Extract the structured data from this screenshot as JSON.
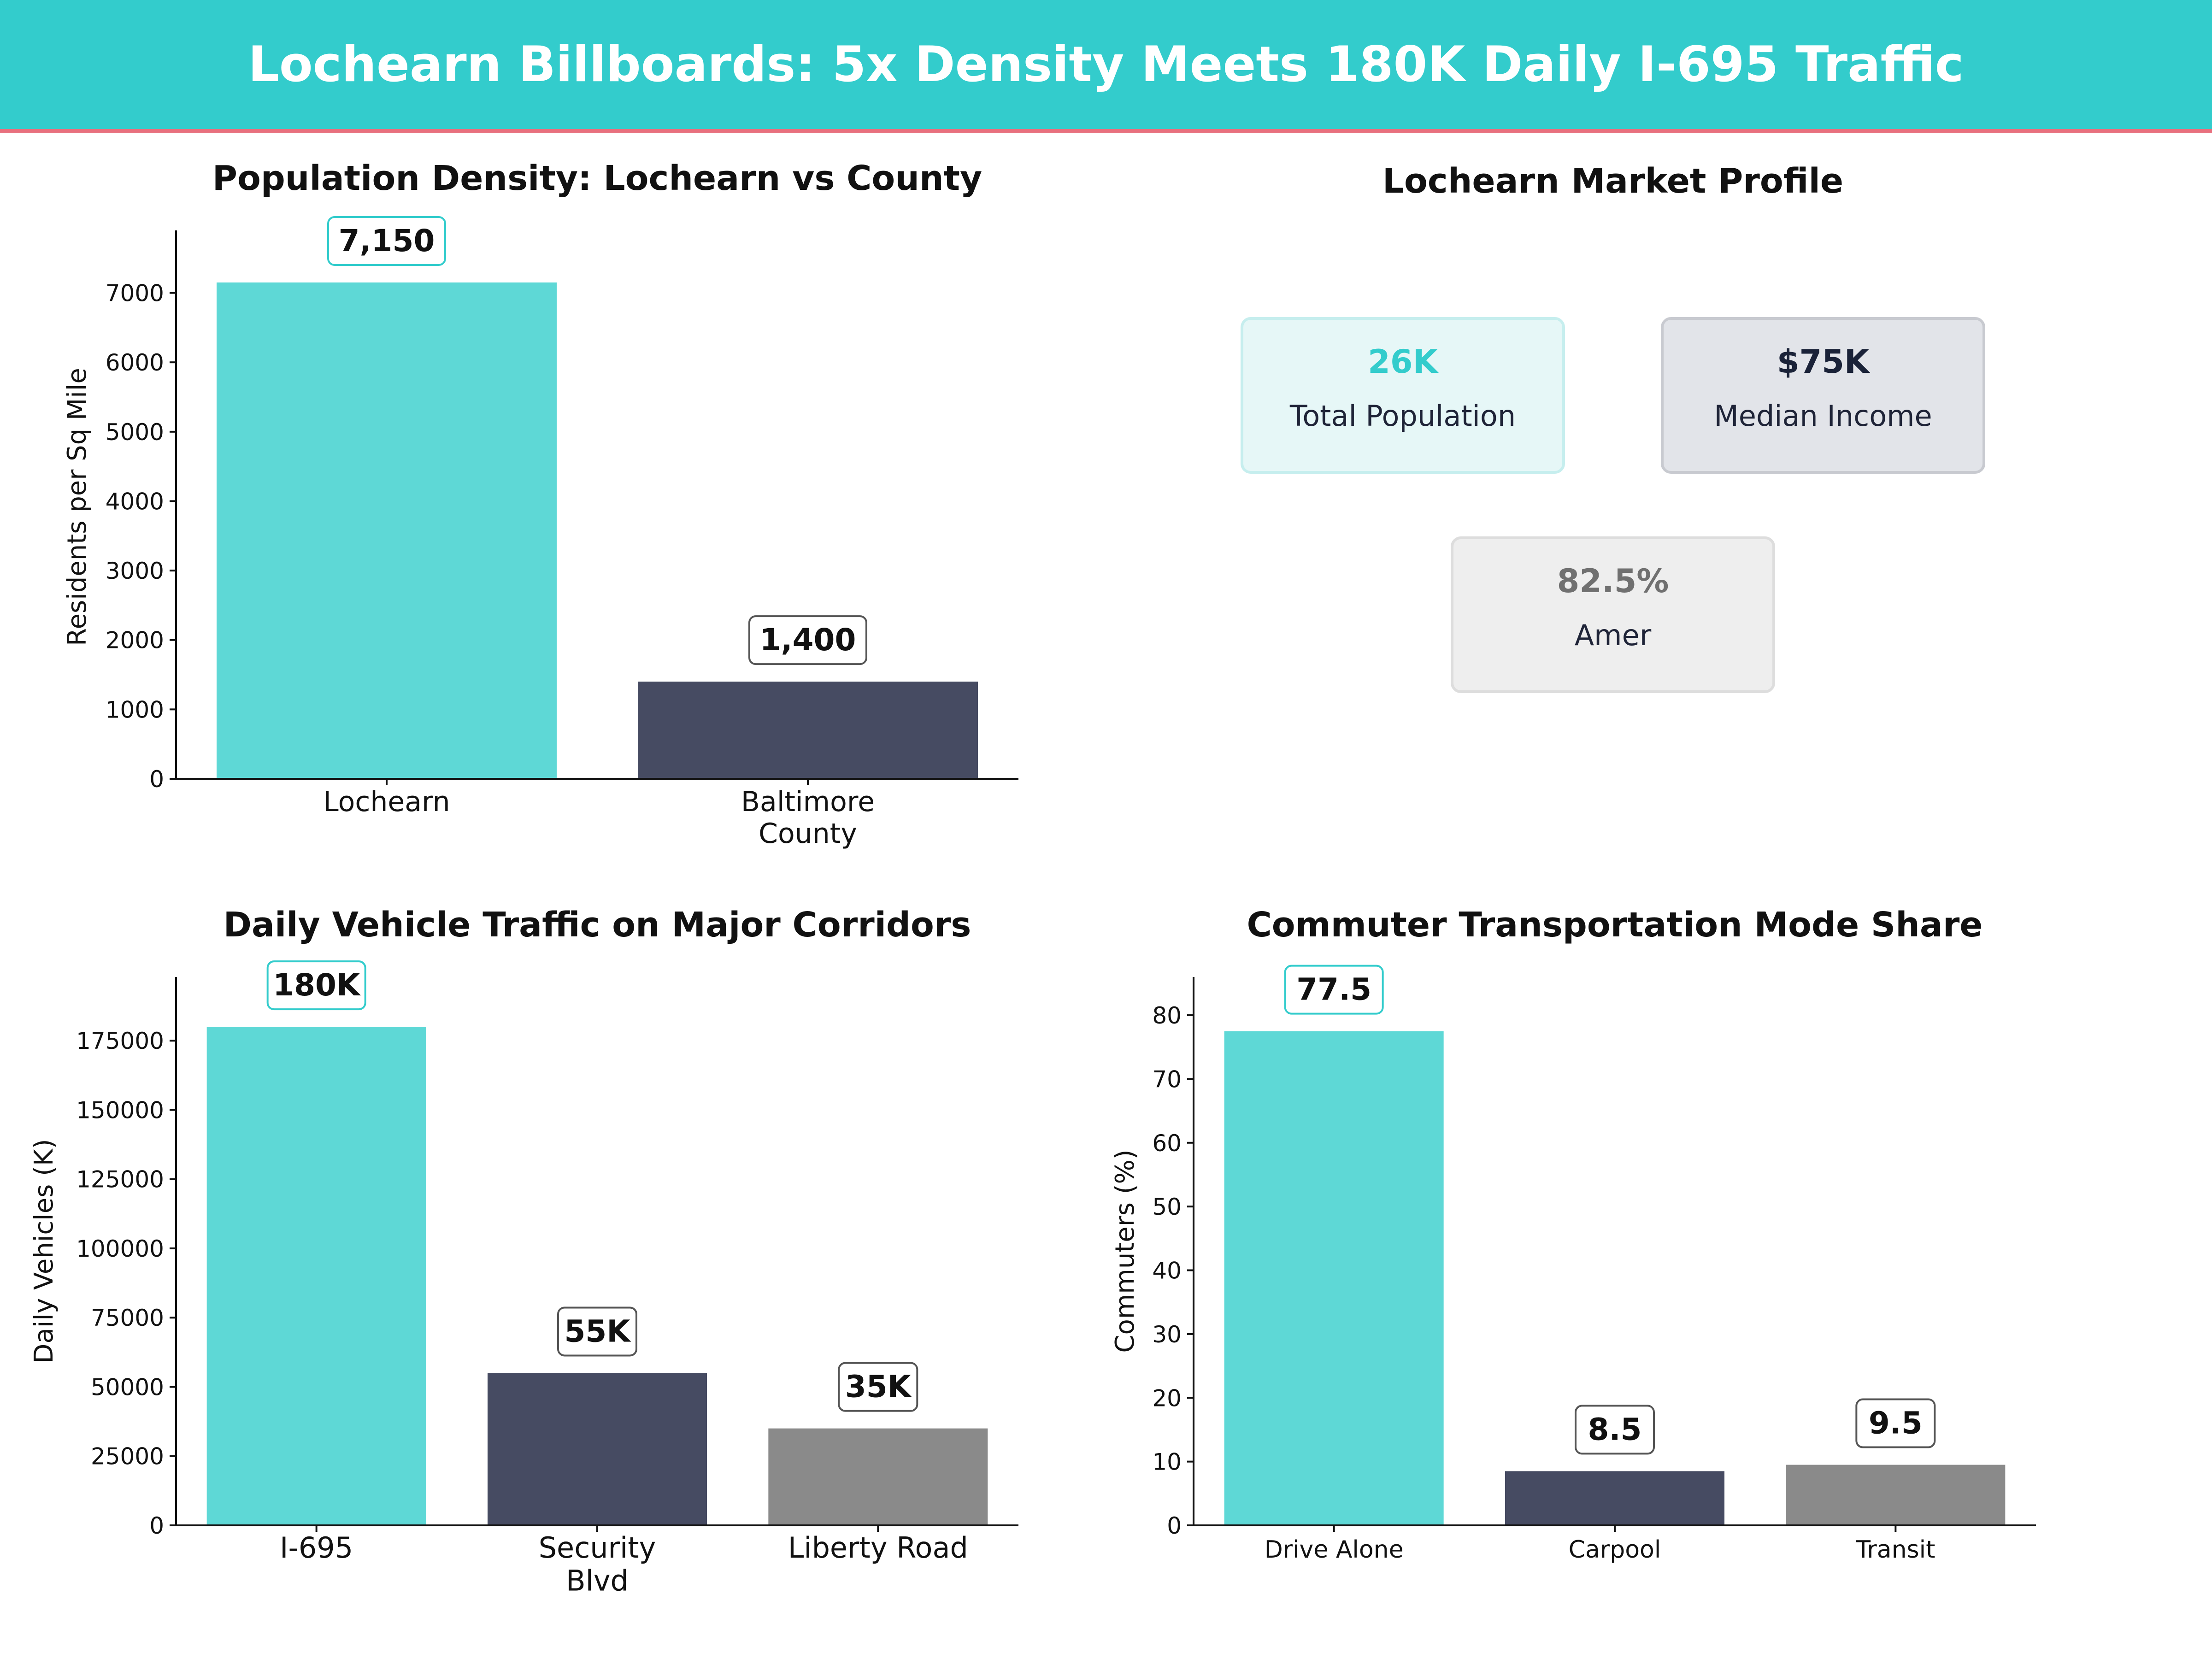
{
  "title": "Lochearn Billboards: 5x Density Meets 180K Daily I-695 Traffic",
  "colors": {
    "header": "#33CCCC",
    "header_rule": "#E8707E",
    "bar_primary": "#5ED8D6",
    "bar_secondary": "#464B62",
    "bar_tertiary": "#8A8A8A"
  },
  "market_profile": {
    "title": "Lochearn Market Profile",
    "cards": [
      {
        "value": "26K",
        "label": "Total Population",
        "bg": "#E6F7F7",
        "border": "#C6EEEE",
        "value_color": "#33CCCC"
      },
      {
        "value": "$75K",
        "label": "Median Income",
        "bg": "#E2E4E9",
        "border": "#C8CAD0",
        "value_color": "#1A2238"
      },
      {
        "value": "82.5%",
        "label": "Amer",
        "bg": "#EEEEEE",
        "border": "#DDDDDD",
        "value_color": "#707070"
      }
    ]
  },
  "chart_data": [
    {
      "id": "density",
      "type": "bar",
      "title": "Population Density: Lochearn vs County",
      "xlabel": "",
      "ylabel": "Residents per Sq Mile",
      "categories": [
        [
          "Lochearn"
        ],
        [
          "Baltimore",
          "County"
        ]
      ],
      "values": [
        7150,
        1400
      ],
      "data_labels": [
        "7,150",
        "1,400"
      ],
      "ylim": [
        0,
        7900
      ],
      "yticks": [
        0,
        1000,
        2000,
        3000,
        4000,
        5000,
        6000,
        7000
      ],
      "ytick_labels": [
        "0",
        "1000",
        "2000",
        "3000",
        "4000",
        "5000",
        "6000",
        "7000"
      ],
      "grid": false,
      "colors": [
        "#5ED8D6",
        "#464B62"
      ]
    },
    {
      "id": "traffic",
      "type": "bar",
      "title": "Daily Vehicle Traffic on Major Corridors",
      "xlabel": "",
      "ylabel": "Daily Vehicles (K)",
      "categories": [
        [
          "I-695"
        ],
        [
          "Security",
          "Blvd"
        ],
        [
          "Liberty Road"
        ]
      ],
      "values": [
        180000,
        55000,
        35000
      ],
      "data_labels": [
        "180K",
        "55K",
        "35K"
      ],
      "ylim": [
        0,
        198000
      ],
      "yticks": [
        0,
        25000,
        50000,
        75000,
        100000,
        125000,
        150000,
        175000
      ],
      "ytick_labels": [
        "0",
        "25000",
        "50000",
        "75000",
        "100000",
        "125000",
        "150000",
        "175000"
      ],
      "grid": false,
      "colors": [
        "#5ED8D6",
        "#464B62",
        "#8A8A8A"
      ]
    },
    {
      "id": "commute",
      "type": "bar",
      "title": "Commuter Transportation Mode Share",
      "xlabel": "",
      "ylabel": "Commuters (%)",
      "categories": [
        [
          "Drive Alone"
        ],
        [
          "Carpool"
        ],
        [
          "Transit"
        ]
      ],
      "values": [
        77.5,
        8.5,
        9.5
      ],
      "data_labels": [
        "77.5",
        "8.5",
        "9.5"
      ],
      "ylim": [
        0,
        86
      ],
      "yticks": [
        0,
        10,
        20,
        30,
        40,
        50,
        60,
        70,
        80
      ],
      "ytick_labels": [
        "0",
        "10",
        "20",
        "30",
        "40",
        "50",
        "60",
        "70",
        "80"
      ],
      "grid": false,
      "colors": [
        "#5ED8D6",
        "#464B62",
        "#8A8A8A"
      ]
    }
  ]
}
